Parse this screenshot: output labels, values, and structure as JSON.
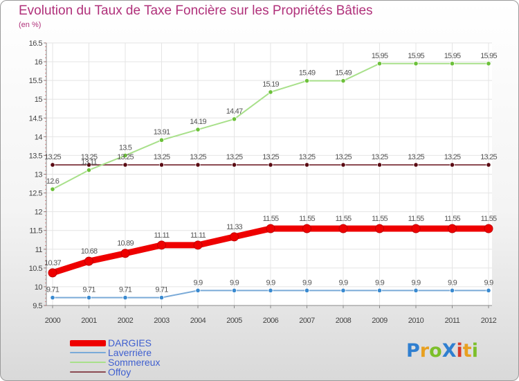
{
  "title": "Evolution du Taux de Taxe Foncière sur les Propriétés Bâties",
  "unit_label": "(en %)",
  "logo": {
    "text": "ProXiti",
    "letters": [
      {
        "ch": "P",
        "color": "#2f7fd0"
      },
      {
        "ch": "r",
        "color": "#e8a020"
      },
      {
        "ch": "o",
        "color": "#7cbf2a"
      },
      {
        "ch": "X",
        "color": "#2f7fd0"
      },
      {
        "ch": "i",
        "color": "#d83a2a"
      },
      {
        "ch": "t",
        "color": "#e8a020"
      },
      {
        "ch": "i",
        "color": "#7cbf2a"
      }
    ]
  },
  "chart_data": {
    "type": "line",
    "title": "Evolution du Taux de Taxe Foncière sur les Propriétés Bâties",
    "ylabel": "(en %)",
    "xlabel": "",
    "ylim": [
      9.5,
      16.5
    ],
    "yticks": [
      "9.5",
      "10",
      "10.5",
      "11",
      "11.5",
      "12",
      "12.5",
      "13",
      "13.5",
      "14",
      "14.5",
      "15",
      "15.5",
      "16",
      "16.5"
    ],
    "categories": [
      "2000",
      "2001",
      "2002",
      "2003",
      "2004",
      "2005",
      "2006",
      "2007",
      "2008",
      "2009",
      "2010",
      "2011",
      "2012"
    ],
    "series": [
      {
        "name": "Offoy",
        "color": "#8b4a52",
        "point_color": "#5a0a12",
        "width": "thin",
        "values": [
          13.25,
          13.25,
          13.25,
          13.25,
          13.25,
          13.25,
          13.25,
          13.25,
          13.25,
          13.25,
          13.25,
          13.25,
          13.25
        ],
        "labels": [
          "13.25",
          "13.25",
          "13.25",
          "13.25",
          "13.25",
          "13.25",
          "13.25",
          "13.25",
          "13.25",
          "13.25",
          "13.25",
          "13.25",
          "13.25"
        ]
      },
      {
        "name": "Sommereux",
        "color": "#a8e08a",
        "point_color": "#6cc03a",
        "width": "thin",
        "values": [
          12.6,
          13.11,
          13.5,
          13.91,
          14.19,
          14.47,
          15.19,
          15.49,
          15.49,
          15.95,
          15.95,
          15.95,
          15.95
        ],
        "labels": [
          "12.6",
          "13.11",
          "13.5",
          "13.91",
          "14.19",
          "14.47",
          "15.19",
          "15.49",
          "15.49",
          "15.95",
          "15.95",
          "15.95",
          "15.95"
        ]
      },
      {
        "name": "Laverrière",
        "color": "#7aaad8",
        "point_color": "#3a8ad0",
        "width": "thin",
        "values": [
          9.71,
          9.71,
          9.71,
          9.71,
          9.9,
          9.9,
          9.9,
          9.9,
          9.9,
          9.9,
          9.9,
          9.9,
          9.9
        ],
        "labels": [
          "9.71",
          "9.71",
          "9.71",
          "9.71",
          "9.9",
          "9.9",
          "9.9",
          "9.9",
          "9.9",
          "9.9",
          "9.9",
          "9.9",
          "9.9"
        ]
      },
      {
        "name": "DARGIES",
        "color": "#ee0000",
        "point_color": "#ee0000",
        "width": "thick",
        "values": [
          10.37,
          10.68,
          10.89,
          11.11,
          11.11,
          11.33,
          11.55,
          11.55,
          11.55,
          11.55,
          11.55,
          11.55,
          11.55
        ],
        "labels": [
          "10.37",
          "10.68",
          "10.89",
          "11.11",
          "11.11",
          "11.33",
          "11.55",
          "11.55",
          "11.55",
          "11.55",
          "11.55",
          "11.55",
          "11.55"
        ]
      }
    ],
    "legend": [
      "DARGIES",
      "Laverrière",
      "Sommereux",
      "Offoy"
    ],
    "legend_position": "bottom-left"
  }
}
